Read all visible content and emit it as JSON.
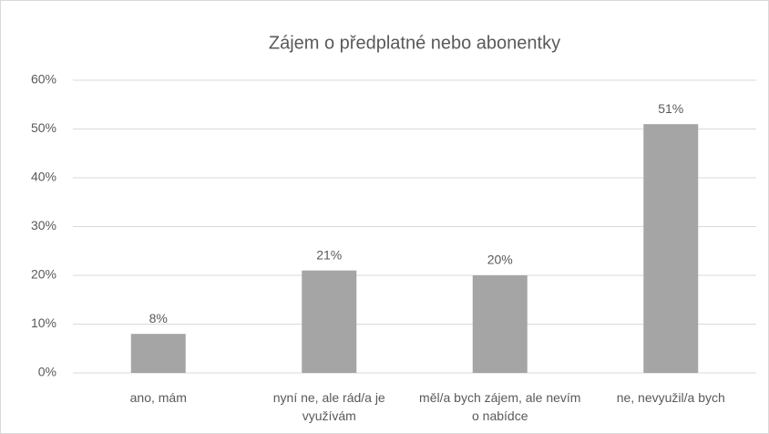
{
  "chart_data": {
    "type": "bar",
    "title": "Zájem o předplatné nebo abonentky",
    "categories": [
      "ano, mám",
      "nyní ne, ale rád/a je využívám",
      "měl/a bych zájem, ale nevím o nabídce",
      "ne, nevyužil/a bych"
    ],
    "values": [
      8,
      21,
      20,
      51
    ],
    "value_labels": [
      "8%",
      "21%",
      "20%",
      "51%"
    ],
    "color": "#a5a5a5",
    "ylim": [
      0,
      60
    ],
    "yticks": [
      {
        "value": 0,
        "label": "0%"
      },
      {
        "value": 10,
        "label": "10%"
      },
      {
        "value": 20,
        "label": "20%"
      },
      {
        "value": 30,
        "label": "30%"
      },
      {
        "value": 40,
        "label": "40%"
      },
      {
        "value": 50,
        "label": "50%"
      },
      {
        "value": 60,
        "label": "60%"
      }
    ],
    "grid": true
  }
}
